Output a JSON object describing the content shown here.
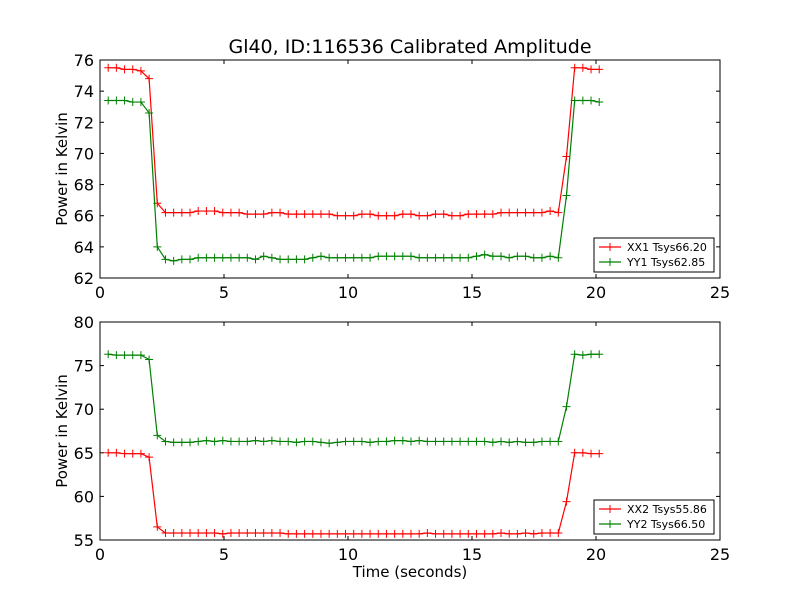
{
  "figure": {
    "title": "Gl40, ID:116536 Calibrated Amplitude",
    "xlabel": "Time (seconds)"
  },
  "chart_data": [
    {
      "type": "line",
      "title": "Gl40, ID:116536 Calibrated Amplitude",
      "xlabel": "",
      "ylabel": "Power in Kelvin",
      "xlim": [
        0,
        25
      ],
      "ylim": [
        62,
        76
      ],
      "xticks": [
        0,
        5,
        10,
        15,
        20,
        25
      ],
      "yticks": [
        62,
        64,
        66,
        68,
        70,
        72,
        74,
        76
      ],
      "legend_position": "lower right",
      "grid": false,
      "series": [
        {
          "name": "XX1 Tsys66.20",
          "color": "#ff0000",
          "marker": "+",
          "x": [
            0.33,
            0.66,
            0.99,
            1.32,
            1.65,
            1.98,
            2.31,
            2.64,
            2.97,
            3.3,
            3.63,
            3.96,
            4.29,
            4.62,
            4.95,
            5.28,
            5.61,
            5.94,
            6.27,
            6.6,
            6.93,
            7.26,
            7.59,
            7.92,
            8.25,
            8.58,
            8.91,
            9.24,
            9.57,
            9.9,
            10.23,
            10.56,
            10.89,
            11.22,
            11.55,
            11.88,
            12.21,
            12.54,
            12.87,
            13.2,
            13.53,
            13.86,
            14.19,
            14.52,
            14.85,
            15.18,
            15.51,
            15.84,
            16.17,
            16.5,
            16.83,
            17.16,
            17.49,
            17.82,
            18.15,
            18.48,
            18.81,
            19.14,
            19.47,
            19.8,
            20.13
          ],
          "y": [
            75.5,
            75.5,
            75.4,
            75.4,
            75.3,
            74.8,
            66.8,
            66.2,
            66.2,
            66.2,
            66.2,
            66.3,
            66.3,
            66.3,
            66.2,
            66.2,
            66.2,
            66.1,
            66.1,
            66.1,
            66.2,
            66.2,
            66.1,
            66.1,
            66.1,
            66.1,
            66.1,
            66.1,
            66.0,
            66.0,
            66.0,
            66.1,
            66.1,
            66.0,
            66.0,
            66.0,
            66.1,
            66.1,
            66.0,
            66.0,
            66.1,
            66.1,
            66.0,
            66.0,
            66.1,
            66.1,
            66.1,
            66.1,
            66.2,
            66.2,
            66.2,
            66.2,
            66.2,
            66.2,
            66.3,
            66.2,
            69.8,
            75.5,
            75.5,
            75.4,
            75.4
          ]
        },
        {
          "name": "YY1 Tsys62.85",
          "color": "#008000",
          "marker": "+",
          "x": [
            0.33,
            0.66,
            0.99,
            1.32,
            1.65,
            1.98,
            2.31,
            2.64,
            2.97,
            3.3,
            3.63,
            3.96,
            4.29,
            4.62,
            4.95,
            5.28,
            5.61,
            5.94,
            6.27,
            6.6,
            6.93,
            7.26,
            7.59,
            7.92,
            8.25,
            8.58,
            8.91,
            9.24,
            9.57,
            9.9,
            10.23,
            10.56,
            10.89,
            11.22,
            11.55,
            11.88,
            12.21,
            12.54,
            12.87,
            13.2,
            13.53,
            13.86,
            14.19,
            14.52,
            14.85,
            15.18,
            15.51,
            15.84,
            16.17,
            16.5,
            16.83,
            17.16,
            17.49,
            17.82,
            18.15,
            18.48,
            18.81,
            19.14,
            19.47,
            19.8,
            20.13
          ],
          "y": [
            73.4,
            73.4,
            73.4,
            73.3,
            73.3,
            72.6,
            64.0,
            63.2,
            63.1,
            63.2,
            63.2,
            63.3,
            63.3,
            63.3,
            63.3,
            63.3,
            63.3,
            63.3,
            63.2,
            63.4,
            63.3,
            63.2,
            63.2,
            63.2,
            63.2,
            63.3,
            63.4,
            63.3,
            63.3,
            63.3,
            63.3,
            63.3,
            63.3,
            63.4,
            63.4,
            63.4,
            63.4,
            63.4,
            63.3,
            63.3,
            63.3,
            63.3,
            63.3,
            63.3,
            63.3,
            63.4,
            63.5,
            63.4,
            63.4,
            63.3,
            63.4,
            63.4,
            63.3,
            63.3,
            63.4,
            63.3,
            67.3,
            73.4,
            73.4,
            73.4,
            73.3
          ]
        }
      ]
    },
    {
      "type": "line",
      "title": "",
      "xlabel": "Time (seconds)",
      "ylabel": "Power in Kelvin",
      "xlim": [
        0,
        25
      ],
      "ylim": [
        55,
        80
      ],
      "xticks": [
        0,
        5,
        10,
        15,
        20,
        25
      ],
      "yticks": [
        55,
        60,
        65,
        70,
        75,
        80
      ],
      "legend_position": "lower right",
      "grid": false,
      "series": [
        {
          "name": "XX2 Tsys55.86",
          "color": "#ff0000",
          "marker": "+",
          "x": [
            0.33,
            0.66,
            0.99,
            1.32,
            1.65,
            1.98,
            2.31,
            2.64,
            2.97,
            3.3,
            3.63,
            3.96,
            4.29,
            4.62,
            4.95,
            5.28,
            5.61,
            5.94,
            6.27,
            6.6,
            6.93,
            7.26,
            7.59,
            7.92,
            8.25,
            8.58,
            8.91,
            9.24,
            9.57,
            9.9,
            10.23,
            10.56,
            10.89,
            11.22,
            11.55,
            11.88,
            12.21,
            12.54,
            12.87,
            13.2,
            13.53,
            13.86,
            14.19,
            14.52,
            14.85,
            15.18,
            15.51,
            15.84,
            16.17,
            16.5,
            16.83,
            17.16,
            17.49,
            17.82,
            18.15,
            18.48,
            18.81,
            19.14,
            19.47,
            19.8,
            20.13
          ],
          "y": [
            65.0,
            65.0,
            64.9,
            64.9,
            64.9,
            64.5,
            56.5,
            55.8,
            55.8,
            55.8,
            55.8,
            55.8,
            55.8,
            55.8,
            55.7,
            55.8,
            55.8,
            55.8,
            55.8,
            55.8,
            55.8,
            55.8,
            55.7,
            55.7,
            55.7,
            55.7,
            55.7,
            55.7,
            55.7,
            55.7,
            55.7,
            55.7,
            55.7,
            55.7,
            55.7,
            55.7,
            55.7,
            55.7,
            55.7,
            55.8,
            55.7,
            55.7,
            55.7,
            55.7,
            55.7,
            55.7,
            55.7,
            55.7,
            55.8,
            55.7,
            55.7,
            55.8,
            55.7,
            55.8,
            55.8,
            55.8,
            59.4,
            65.0,
            65.0,
            64.9,
            64.9
          ]
        },
        {
          "name": "YY2 Tsys66.50",
          "color": "#008000",
          "marker": "+",
          "x": [
            0.33,
            0.66,
            0.99,
            1.32,
            1.65,
            1.98,
            2.31,
            2.64,
            2.97,
            3.3,
            3.63,
            3.96,
            4.29,
            4.62,
            4.95,
            5.28,
            5.61,
            5.94,
            6.27,
            6.6,
            6.93,
            7.26,
            7.59,
            7.92,
            8.25,
            8.58,
            8.91,
            9.24,
            9.57,
            9.9,
            10.23,
            10.56,
            10.89,
            11.22,
            11.55,
            11.88,
            12.21,
            12.54,
            12.87,
            13.2,
            13.53,
            13.86,
            14.19,
            14.52,
            14.85,
            15.18,
            15.51,
            15.84,
            16.17,
            16.5,
            16.83,
            17.16,
            17.49,
            17.82,
            18.15,
            18.48,
            18.81,
            19.14,
            19.47,
            19.8,
            20.13
          ],
          "y": [
            76.3,
            76.2,
            76.2,
            76.2,
            76.2,
            75.7,
            67.0,
            66.3,
            66.2,
            66.2,
            66.2,
            66.3,
            66.4,
            66.3,
            66.4,
            66.3,
            66.3,
            66.3,
            66.4,
            66.3,
            66.4,
            66.3,
            66.3,
            66.2,
            66.3,
            66.3,
            66.2,
            66.1,
            66.2,
            66.3,
            66.3,
            66.3,
            66.2,
            66.3,
            66.3,
            66.4,
            66.4,
            66.3,
            66.4,
            66.3,
            66.3,
            66.3,
            66.3,
            66.3,
            66.3,
            66.3,
            66.3,
            66.2,
            66.3,
            66.2,
            66.3,
            66.2,
            66.2,
            66.3,
            66.3,
            66.3,
            70.3,
            76.3,
            76.2,
            76.3,
            76.3
          ]
        }
      ]
    }
  ]
}
